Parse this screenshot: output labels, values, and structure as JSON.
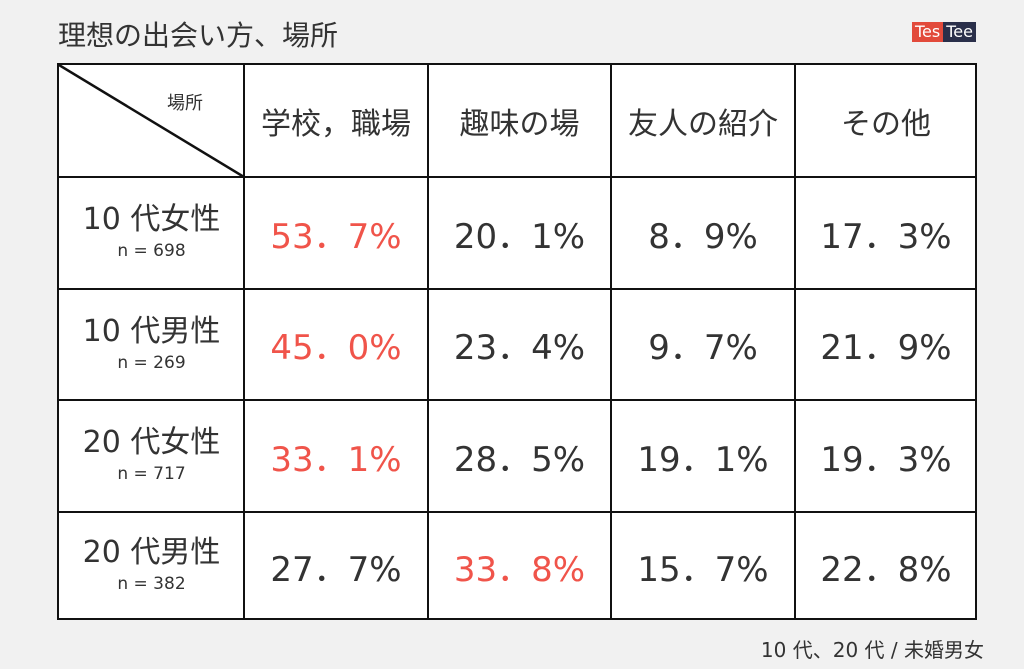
{
  "header": {
    "title": "理想の出会い方、場所",
    "logo": [
      "Tes",
      "Tee"
    ]
  },
  "table": {
    "corner": "場所",
    "columns": [
      "学校，職場",
      "趣味の場",
      "友人の紹介",
      "その他"
    ],
    "rows": [
      {
        "label": "10 代女性",
        "n": "n = 698",
        "cells": [
          "53．7%",
          "20．1%",
          "8．9%",
          "17．3%"
        ],
        "highlight": [
          0
        ]
      },
      {
        "label": "10 代男性",
        "n": "n = 269",
        "cells": [
          "45．0%",
          "23．4%",
          "9．7%",
          "21．9%"
        ],
        "highlight": [
          0
        ]
      },
      {
        "label": "20 代女性",
        "n": "n = 717",
        "cells": [
          "33．1%",
          "28．5%",
          "19．1%",
          "19．3%"
        ],
        "highlight": [
          0
        ]
      },
      {
        "label": "20 代男性",
        "n": "n = 382",
        "cells": [
          "27．7%",
          "33．8%",
          "15．7%",
          "22．8%"
        ],
        "highlight": [
          1
        ]
      }
    ],
    "highlight_color": "#f0544a",
    "text_color": "#333333"
  },
  "footer": {
    "note": "10 代、20 代 / 未婚男女"
  }
}
